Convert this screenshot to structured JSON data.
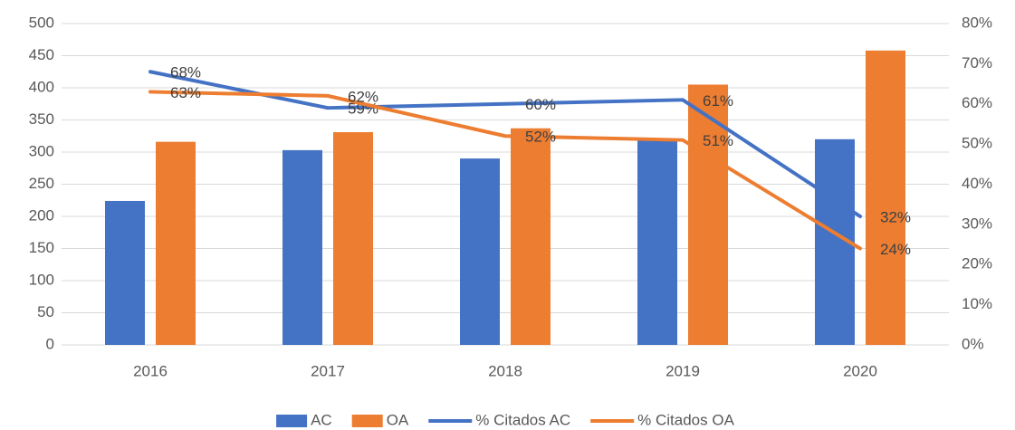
{
  "chart_data": {
    "type": "bar",
    "categories": [
      "2016",
      "2017",
      "2018",
      "2019",
      "2020"
    ],
    "series": [
      {
        "name": "AC",
        "type": "bar",
        "color": "#4472c4",
        "values": [
          224,
          303,
          290,
          320,
          320
        ]
      },
      {
        "name": "OA",
        "type": "bar",
        "color": "#ed7d31",
        "values": [
          316,
          331,
          337,
          405,
          458
        ]
      },
      {
        "name": "% Citados AC",
        "type": "line",
        "axis": "y2",
        "color": "#4472c4",
        "values": [
          68,
          59,
          60,
          61,
          32
        ],
        "value_labels": [
          "68%",
          "59%",
          "60%",
          "61%",
          "32%"
        ]
      },
      {
        "name": "% Citados OA",
        "type": "line",
        "axis": "y2",
        "color": "#ed7d31",
        "values": [
          63,
          62,
          52,
          51,
          24
        ],
        "value_labels": [
          "63%",
          "62%",
          "52%",
          "51%",
          "24%"
        ]
      }
    ],
    "ylim": [
      0,
      500
    ],
    "yticks": [
      0,
      50,
      100,
      150,
      200,
      250,
      300,
      350,
      400,
      450,
      500
    ],
    "y2lim": [
      0,
      80
    ],
    "y2ticks": [
      {
        "value": 0,
        "label": "0%"
      },
      {
        "value": 10,
        "label": "10%"
      },
      {
        "value": 20,
        "label": "20%"
      },
      {
        "value": 30,
        "label": "30%"
      },
      {
        "value": 40,
        "label": "40%"
      },
      {
        "value": 50,
        "label": "50%"
      },
      {
        "value": 60,
        "label": "60%"
      },
      {
        "value": 70,
        "label": "70%"
      },
      {
        "value": 80,
        "label": "80%"
      }
    ],
    "grid": true,
    "legend": "bottom"
  }
}
